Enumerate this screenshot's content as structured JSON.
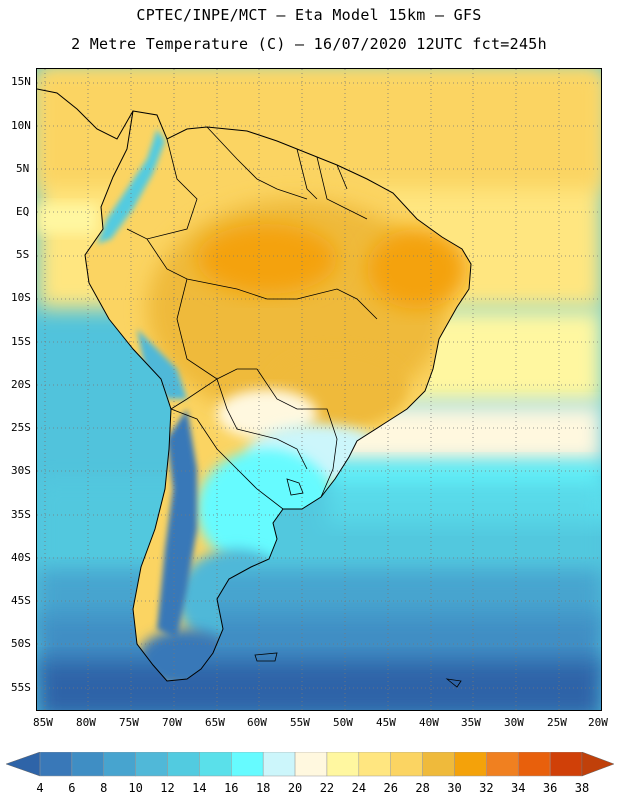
{
  "header": {
    "line1": "CPTEC/INPE/MCT –  Eta Model 15km – GFS",
    "line2": "2 Metre Temperature (C) – 16/07/2020 12UTC fct=245h"
  },
  "map": {
    "variable": "2 Metre Temperature",
    "units": "C",
    "lat_labels": [
      "15N",
      "10N",
      "5N",
      "EQ",
      "5S",
      "10S",
      "15S",
      "20S",
      "25S",
      "30S",
      "35S",
      "40S",
      "45S",
      "50S",
      "55S"
    ],
    "lon_labels": [
      "85W",
      "80W",
      "75W",
      "70W",
      "65W",
      "60W",
      "55W",
      "50W",
      "45W",
      "40W",
      "35W",
      "30W",
      "25W",
      "20W"
    ],
    "lat_range": [
      17,
      -58
    ],
    "lon_range": [
      -86,
      -20
    ]
  },
  "legend": {
    "ticks": [
      "4",
      "6",
      "8",
      "10",
      "12",
      "14",
      "16",
      "18",
      "20",
      "22",
      "24",
      "26",
      "28",
      "30",
      "32",
      "34",
      "36",
      "38"
    ],
    "colors": [
      "#2e64a8",
      "#3978b8",
      "#3f8ec4",
      "#47a4cf",
      "#50b8d8",
      "#52cbe0",
      "#5ae0ea",
      "#66fbff",
      "#ccf6fb",
      "#fff8df",
      "#fff7a0",
      "#ffe680",
      "#fbd462",
      "#efba3b",
      "#f4a20a",
      "#f08020",
      "#e8600c",
      "#d04008",
      "#c0400a"
    ]
  }
}
